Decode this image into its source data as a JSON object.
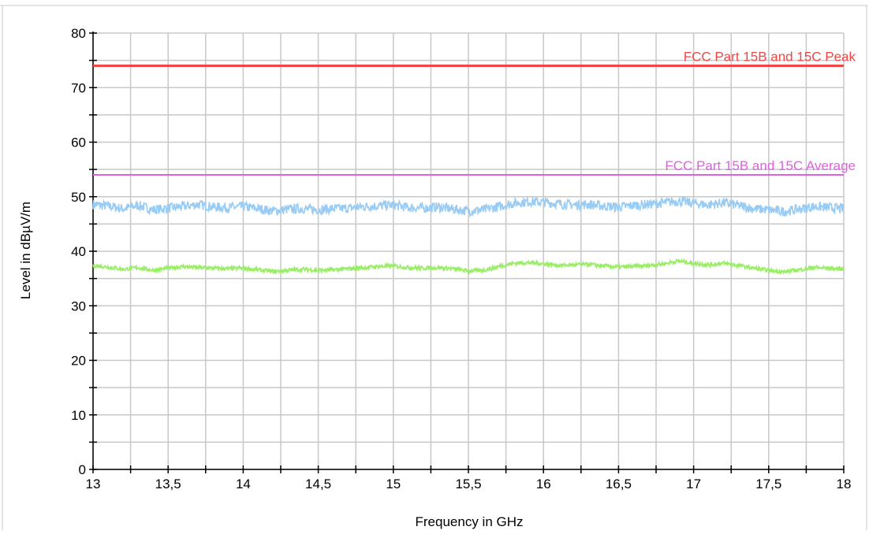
{
  "chart_data": {
    "type": "line",
    "xlabel": "Frequency in GHz",
    "ylabel": "Level in dBµV/m",
    "xlim": [
      13,
      18
    ],
    "ylim": [
      0,
      80
    ],
    "x_ticks": [
      13,
      13.5,
      14,
      14.5,
      15,
      15.5,
      16,
      16.5,
      17,
      17.5,
      18
    ],
    "x_tick_labels": [
      "13",
      "13,5",
      "14",
      "14,5",
      "15",
      "15,5",
      "16",
      "16,5",
      "17",
      "17,5",
      "18"
    ],
    "y_ticks": [
      0,
      10,
      20,
      30,
      40,
      50,
      60,
      70,
      80
    ],
    "y_tick_labels": [
      "0",
      "10",
      "20",
      "30",
      "40",
      "50",
      "60",
      "70",
      "80"
    ],
    "grid": true,
    "limits": [
      {
        "label": "FCC Part 15B and 15C Peak",
        "value": 74,
        "color": "#f04646"
      },
      {
        "label": "FCC Part 15B and 15C Average",
        "value": 54,
        "color": "#e060e0"
      }
    ],
    "series": [
      {
        "color": "#99ccf5",
        "x": [
          13.0,
          13.1,
          13.2,
          13.3,
          13.4,
          13.5,
          13.6,
          13.7,
          13.8,
          13.9,
          14.0,
          14.1,
          14.2,
          14.3,
          14.4,
          14.5,
          14.6,
          14.7,
          14.8,
          14.9,
          15.0,
          15.1,
          15.2,
          15.3,
          15.4,
          15.5,
          15.6,
          15.7,
          15.8,
          15.9,
          16.0,
          16.1,
          16.2,
          16.3,
          16.4,
          16.5,
          16.6,
          16.7,
          16.8,
          16.9,
          17.0,
          17.1,
          17.2,
          17.3,
          17.4,
          17.5,
          17.6,
          17.7,
          17.8,
          17.9,
          18.0
        ],
        "values": [
          48.6,
          48.3,
          47.8,
          48.4,
          47.6,
          47.9,
          48.2,
          48.6,
          48.1,
          48.0,
          48.2,
          47.8,
          47.4,
          47.7,
          47.8,
          47.6,
          47.8,
          47.9,
          48.2,
          48.3,
          48.5,
          48.0,
          47.9,
          48.1,
          47.7,
          47.4,
          47.6,
          48.2,
          48.8,
          49.1,
          49.0,
          48.7,
          48.5,
          48.6,
          48.3,
          48.1,
          48.4,
          48.6,
          48.9,
          49.2,
          48.8,
          48.5,
          48.9,
          48.4,
          47.8,
          47.6,
          47.3,
          47.7,
          48.2,
          48.0,
          47.8
        ]
      },
      {
        "color": "#99ee66",
        "x": [
          13.0,
          13.1,
          13.2,
          13.3,
          13.4,
          13.5,
          13.6,
          13.7,
          13.8,
          13.9,
          14.0,
          14.1,
          14.2,
          14.3,
          14.4,
          14.5,
          14.6,
          14.7,
          14.8,
          14.9,
          15.0,
          15.1,
          15.2,
          15.3,
          15.4,
          15.5,
          15.6,
          15.7,
          15.8,
          15.9,
          16.0,
          16.1,
          16.2,
          16.3,
          16.4,
          16.5,
          16.6,
          16.7,
          16.8,
          16.9,
          17.0,
          17.1,
          17.2,
          17.3,
          17.4,
          17.5,
          17.6,
          17.7,
          17.8,
          17.9,
          18.0
        ],
        "values": [
          37.4,
          37.1,
          36.7,
          37.0,
          36.5,
          36.9,
          37.2,
          37.0,
          36.9,
          36.8,
          36.9,
          36.6,
          36.3,
          36.5,
          36.7,
          36.5,
          36.6,
          36.8,
          37.0,
          37.2,
          37.3,
          37.0,
          36.9,
          37.0,
          36.8,
          36.4,
          36.5,
          37.2,
          37.8,
          37.9,
          37.7,
          37.4,
          37.5,
          37.6,
          37.3,
          37.1,
          37.2,
          37.4,
          37.7,
          38.2,
          37.8,
          37.5,
          37.8,
          37.4,
          36.9,
          36.5,
          36.2,
          36.6,
          37.0,
          36.9,
          36.7
        ]
      }
    ]
  }
}
